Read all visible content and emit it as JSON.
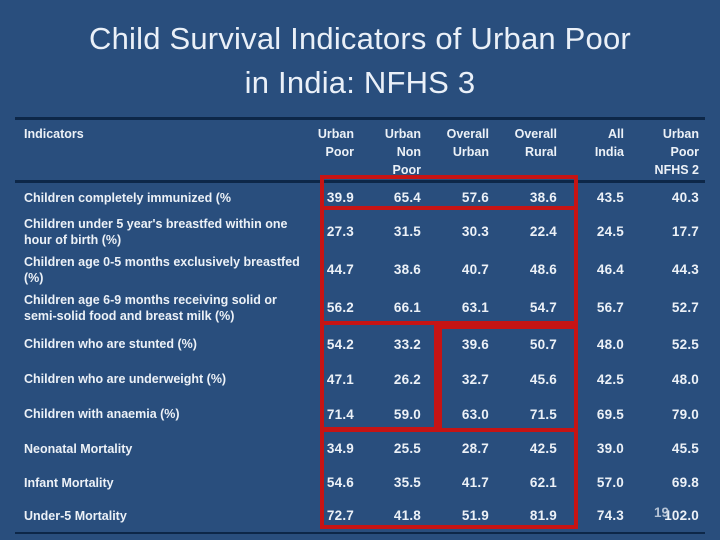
{
  "slide": {
    "title_line1": "Child Survival Indicators of Urban Poor",
    "title_line2": "in India: NFHS 3",
    "page_number": "19",
    "colors": {
      "background": "#294E7D",
      "highlight_red": "#C61414",
      "divider_navy": "#0D2748",
      "text": "#ECF1F7"
    }
  },
  "table": {
    "headers": [
      "Indicators",
      "Urban\nPoor",
      "Urban\nNon\nPoor",
      "Overall\nUrban",
      "Overall\nRural",
      "All\nIndia",
      "Urban\nPoor\nNFHS 2"
    ],
    "rows": [
      {
        "label": "Children completely immunized (%",
        "values": [
          "39.9",
          "65.4",
          "57.6",
          "38.6",
          "43.5",
          "40.3"
        ]
      },
      {
        "label": "Children under 5 year's breastfed within one hour of birth (%)",
        "values": [
          "27.3",
          "31.5",
          "30.3",
          "22.4",
          "24.5",
          "17.7"
        ]
      },
      {
        "label": "Children age 0-5 months exclusively breastfed (%)",
        "values": [
          "44.7",
          "38.6",
          "40.7",
          "48.6",
          "46.4",
          "44.3"
        ]
      },
      {
        "label": "Children age 6-9 months receiving solid or semi-solid food and breast milk (%)",
        "values": [
          "56.2",
          "66.1",
          "63.1",
          "54.7",
          "56.7",
          "52.7"
        ]
      },
      {
        "label": "Children who are stunted (%)",
        "values": [
          "54.2",
          "33.2",
          "39.6",
          "50.7",
          "48.0",
          "52.5"
        ]
      },
      {
        "label": "Children who are underweight (%)",
        "values": [
          "47.1",
          "26.2",
          "32.7",
          "45.6",
          "42.5",
          "48.0"
        ]
      },
      {
        "label": "Children with anaemia (%)",
        "values": [
          "71.4",
          "59.0",
          "63.0",
          "71.5",
          "69.5",
          "79.0"
        ]
      },
      {
        "label": "Neonatal Mortality",
        "values": [
          "34.9",
          "25.5",
          "28.7",
          "42.5",
          "39.0",
          "45.5"
        ]
      },
      {
        "label": "Infant Mortality",
        "values": [
          "54.6",
          "35.5",
          "41.7",
          "62.1",
          "57.0",
          "69.8"
        ]
      },
      {
        "label": "Under-5 Mortality",
        "values": [
          "72.7",
          "41.8",
          "51.9",
          "81.9",
          "74.3",
          "102.0"
        ]
      }
    ],
    "highlight_boxes": [
      "immunization row, columns Urban Poor to Overall Rural",
      "breastfeeding rows, columns Urban Poor to Overall Rural",
      "nutrition-status rows, columns Urban Poor and Urban Non Poor",
      "nutrition-status rows, columns Overall Urban and Overall Rural",
      "mortality rows, columns Urban Poor to Overall Rural"
    ]
  }
}
